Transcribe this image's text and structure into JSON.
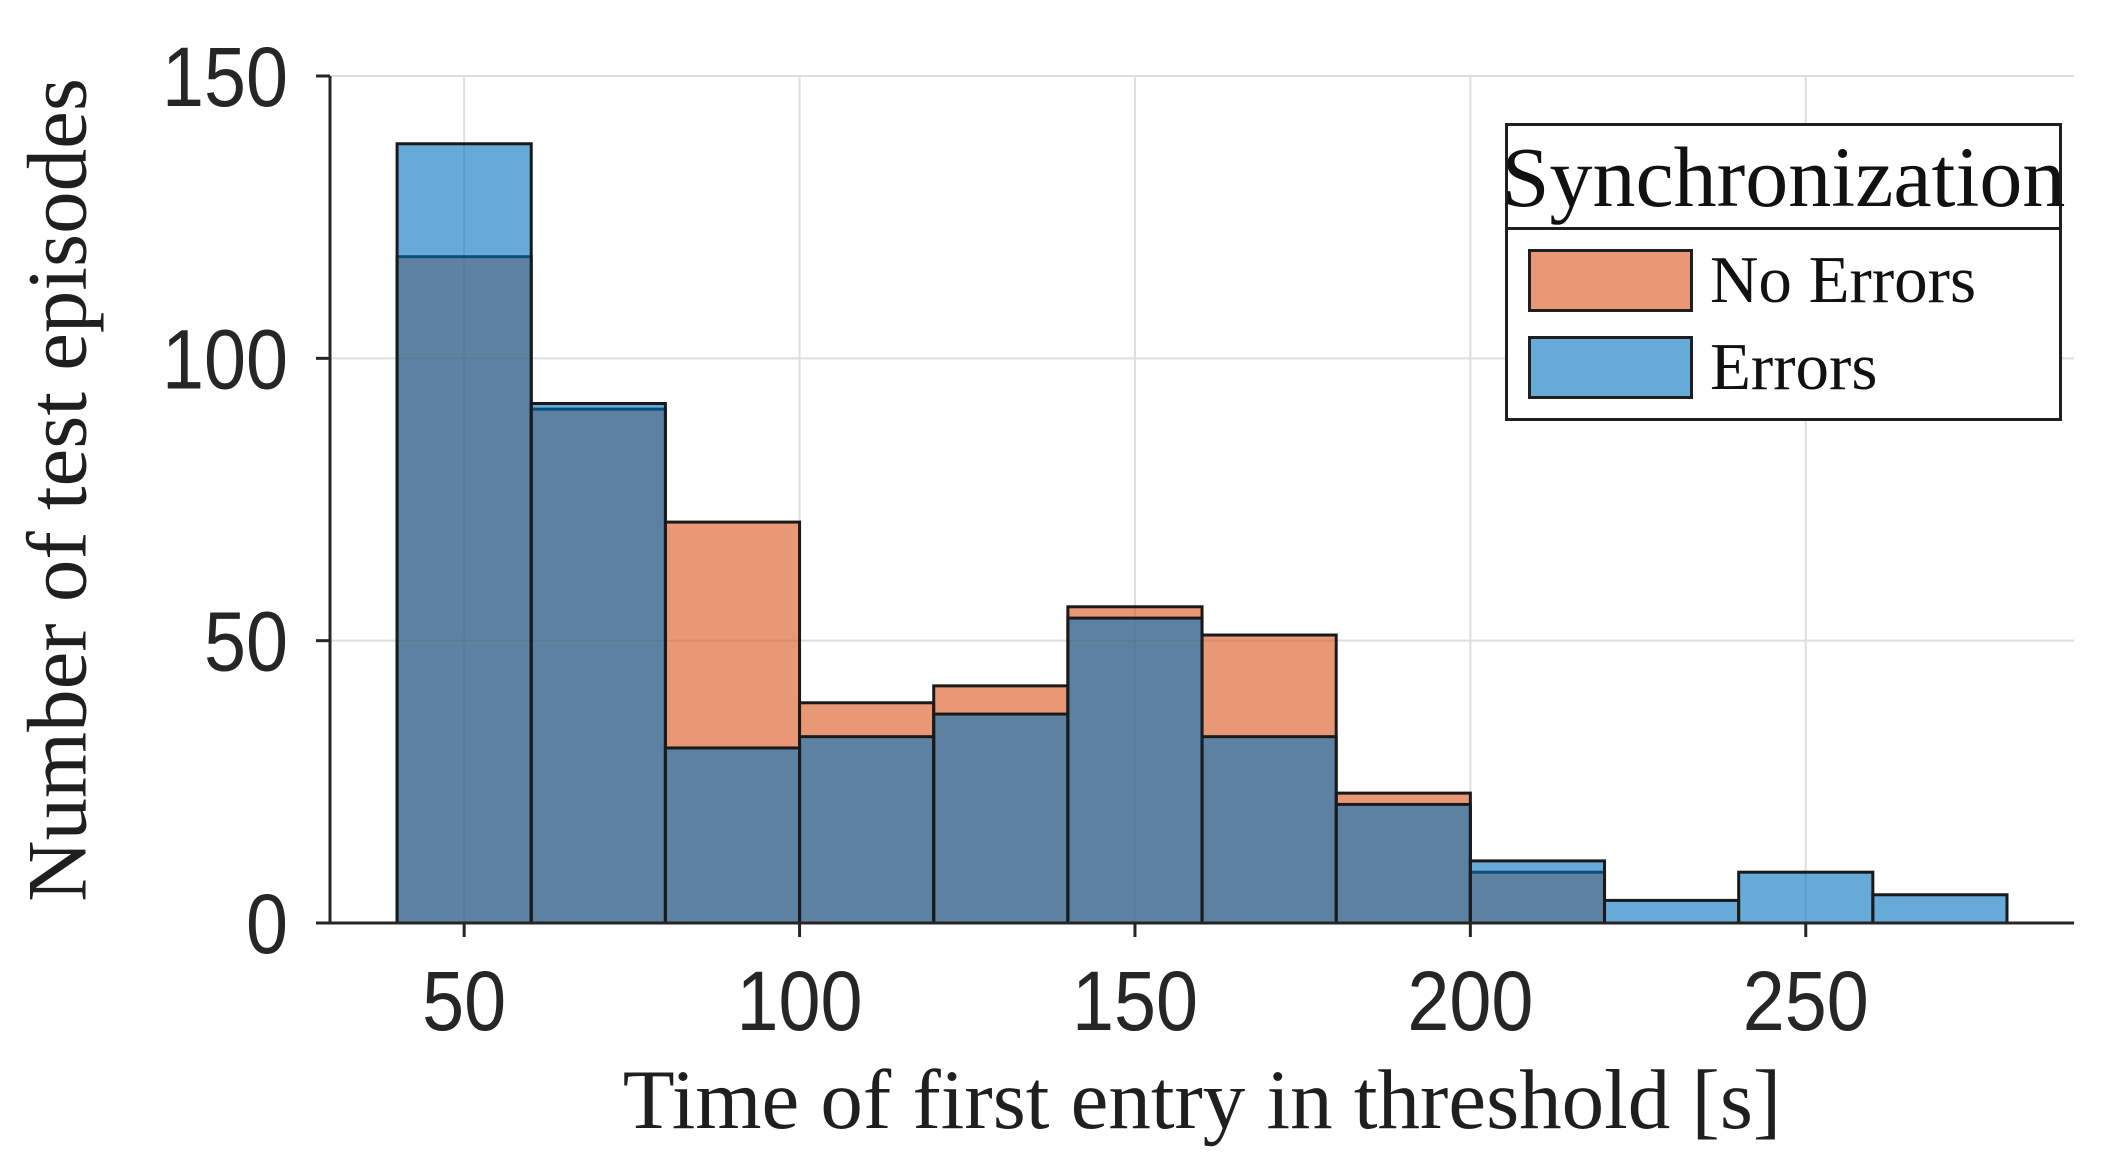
{
  "chart_data": {
    "type": "bar",
    "subtype": "overlaid-histogram",
    "title": "",
    "xlabel": "Time of first entry in threshold [s]",
    "ylabel": "Number of test episodes",
    "bin_width": 20,
    "bin_edges": [
      40,
      60,
      80,
      100,
      120,
      140,
      160,
      180,
      200,
      220,
      240,
      260,
      280
    ],
    "series": [
      {
        "name": "No Errors",
        "color": "#D95319",
        "fill_alpha": 0.6,
        "values": [
          118,
          91,
          71,
          39,
          42,
          56,
          51,
          23,
          9,
          0,
          0,
          0
        ]
      },
      {
        "name": "Errors",
        "color": "#0072BD",
        "fill_alpha": 0.6,
        "values": [
          138,
          92,
          31,
          33,
          37,
          54,
          33,
          21,
          11,
          4,
          9,
          5
        ]
      }
    ],
    "x_ticks": [
      50,
      100,
      150,
      200,
      250
    ],
    "y_ticks": [
      0,
      50,
      100,
      150
    ],
    "xlim": [
      30,
      290
    ],
    "ylim": [
      0,
      150
    ],
    "grid": true,
    "legend": {
      "title": "Synchronization",
      "position": "northeast"
    }
  },
  "style": {
    "background": "#ffffff",
    "bar_edge_color": "#1a1a1a",
    "axis_color": "#262626",
    "grid_color": "#dedede",
    "tick_label_color": "#262626",
    "label_color": "#1f1f1f"
  }
}
